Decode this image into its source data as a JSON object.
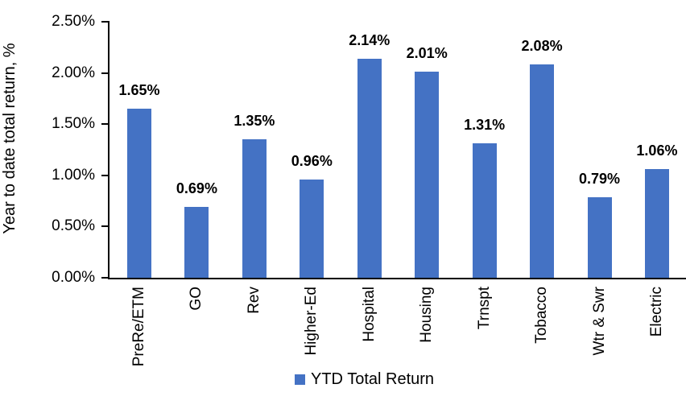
{
  "chart_data": {
    "type": "bar",
    "title": "",
    "xlabel": "",
    "ylabel": "Year to date total return, %",
    "categories": [
      "PreRe/ETM",
      "GO",
      "Rev",
      "Higher-Ed",
      "Hospital",
      "Housing",
      "Trnspt",
      "Tobacco",
      "Wtr & Swr",
      "Electric"
    ],
    "values": [
      1.65,
      0.69,
      1.35,
      0.96,
      2.14,
      2.01,
      1.31,
      2.08,
      0.79,
      1.06
    ],
    "data_labels": [
      "1.65%",
      "0.69%",
      "1.35%",
      "0.96%",
      "2.14%",
      "2.01%",
      "1.31%",
      "2.08%",
      "0.79%",
      "1.06%"
    ],
    "ylim": [
      0,
      2.5
    ],
    "ytick_labels": [
      "0.00%",
      "0.50%",
      "1.00%",
      "1.50%",
      "2.00%",
      "2.50%"
    ],
    "grid": "off",
    "legend": {
      "position": "bottom",
      "entries": [
        {
          "label": "YTD Total Return",
          "color": "#4472C4"
        }
      ]
    }
  },
  "colors": {
    "bar": "#4472C4",
    "axis": "#000000",
    "text": "#000000",
    "background": "#FFFFFF"
  }
}
